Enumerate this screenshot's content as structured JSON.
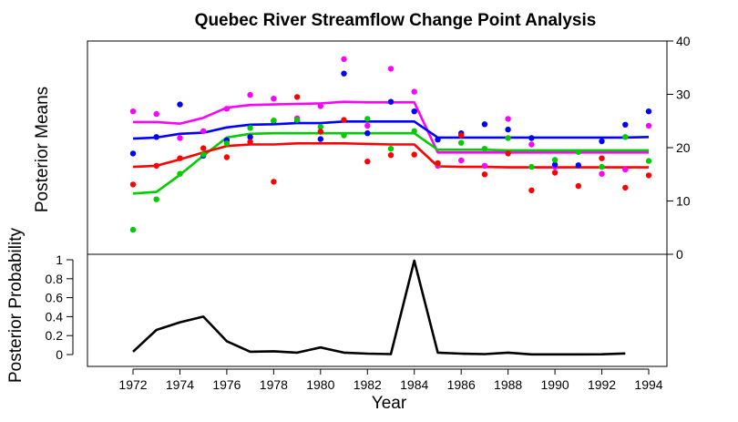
{
  "chart_data": [
    {
      "type": "line",
      "title": "Quebec River Streamflow Change Point Analysis",
      "ylabel": "Posterior Means",
      "ylim": [
        0,
        40
      ],
      "y_axis_side": "right",
      "yticks": [
        0,
        10,
        20,
        30,
        40
      ],
      "x": [
        1972,
        1973,
        1974,
        1975,
        1976,
        1977,
        1978,
        1979,
        1980,
        1981,
        1982,
        1983,
        1984,
        1985,
        1986,
        1987,
        1988,
        1989,
        1990,
        1991,
        1992,
        1993,
        1994
      ],
      "series": [
        {
          "color": "#ff00ff",
          "line": [
            24.8,
            24.8,
            24.5,
            25.6,
            27.5,
            28.0,
            28.1,
            28.2,
            28.3,
            28.6,
            28.5,
            28.5,
            28.5,
            19.1,
            19.1,
            19.1,
            19.1,
            19.1,
            19.1,
            19.1,
            19.1,
            19.1,
            19.1
          ],
          "points": [
            26.8,
            26.3,
            21.8,
            23.1,
            27.3,
            29.9,
            29.2,
            25.5,
            27.8,
            36.6,
            24.1,
            34.8,
            30.5,
            16.6,
            17.6,
            16.6,
            25.4,
            20.6,
            16.4,
            19.2,
            15.1,
            15.9,
            24.1
          ]
        },
        {
          "color": "#0000ff",
          "line": [
            21.7,
            21.9,
            22.6,
            22.8,
            23.8,
            24.3,
            24.4,
            24.6,
            24.6,
            24.9,
            24.9,
            24.9,
            24.9,
            21.9,
            21.9,
            21.9,
            21.9,
            21.9,
            21.9,
            21.9,
            21.9,
            21.9,
            22.0
          ],
          "points": [
            18.9,
            22.0,
            28.1,
            18.5,
            21.4,
            22.0,
            25.0,
            25.0,
            21.6,
            33.9,
            22.7,
            28.6,
            26.8,
            21.5,
            22.7,
            24.4,
            23.4,
            21.8,
            16.8,
            16.7,
            21.2,
            24.3,
            26.8
          ]
        },
        {
          "color": "#00cc00",
          "line": [
            11.4,
            11.7,
            14.9,
            18.5,
            21.9,
            22.6,
            22.7,
            22.7,
            22.7,
            22.7,
            22.7,
            22.7,
            22.7,
            19.6,
            19.6,
            19.6,
            19.5,
            19.5,
            19.5,
            19.5,
            19.5,
            19.5,
            19.5
          ],
          "points": [
            4.6,
            10.3,
            15.1,
            18.7,
            20.8,
            23.7,
            25.1,
            25.2,
            23.9,
            22.3,
            25.4,
            19.8,
            23.1,
            17.0,
            20.9,
            19.8,
            21.8,
            16.4,
            17.7,
            19.2,
            16.4,
            22.0,
            17.5
          ]
        },
        {
          "color": "#ff0000",
          "line": [
            16.4,
            16.6,
            17.8,
            19.1,
            20.3,
            20.6,
            20.6,
            20.8,
            20.8,
            20.8,
            20.7,
            20.6,
            20.6,
            16.5,
            16.4,
            16.4,
            16.3,
            16.3,
            16.3,
            16.3,
            16.3,
            16.3,
            16.3
          ],
          "points": [
            13.1,
            16.6,
            18.0,
            19.9,
            18.2,
            21.1,
            13.6,
            29.5,
            23.0,
            25.2,
            17.4,
            18.6,
            18.7,
            17.1,
            22.3,
            15.0,
            18.9,
            12.0,
            15.3,
            12.8,
            18.0,
            12.5,
            14.8
          ]
        }
      ]
    },
    {
      "type": "line",
      "xlabel": "Year",
      "ylabel": "Posterior Probability",
      "ylim": [
        0,
        1
      ],
      "yticks": [
        "0",
        "0.2",
        "0.4",
        "0.6",
        "0.8",
        "1"
      ],
      "xticks": [
        "1972",
        "1974",
        "1976",
        "1978",
        "1980",
        "1982",
        "1984",
        "1986",
        "1988",
        "1990",
        "1992",
        "1994"
      ],
      "x": [
        1972,
        1973,
        1974,
        1975,
        1976,
        1977,
        1978,
        1979,
        1980,
        1981,
        1982,
        1983,
        1984,
        1985,
        1986,
        1987,
        1988,
        1989,
        1990,
        1991,
        1992,
        1993
      ],
      "values": [
        0.03,
        0.26,
        0.34,
        0.4,
        0.14,
        0.03,
        0.035,
        0.02,
        0.075,
        0.02,
        0.01,
        0.005,
        0.99,
        0.02,
        0.01,
        0.005,
        0.02,
        0.002,
        0.002,
        0.002,
        0.003,
        0.012
      ],
      "color": "#000000"
    }
  ]
}
